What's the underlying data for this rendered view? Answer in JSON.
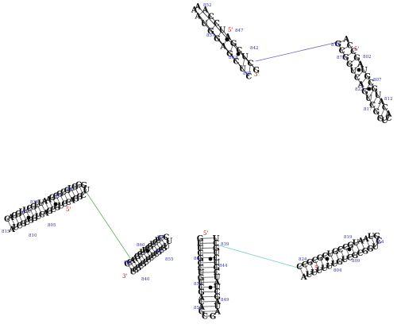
{
  "colors": {
    "nucleotide": "#111111",
    "number": "#3333aa",
    "strand_end": "#cc0000",
    "link_a": "#6666cc",
    "link_b": "#66aa66",
    "link_c": "#77cccc"
  },
  "structures": [
    {
      "id": "helix-1",
      "sequence": "AUGGAGCUCAAGCUCGAUCCA",
      "five_prime": "5'",
      "three_prime": "3'",
      "numbers": [
        "852",
        "847",
        "857",
        "842",
        "862",
        "867"
      ]
    },
    {
      "id": "helix-2",
      "sequence": "GCGGUCAGUCGCUCACAUGCGUAGCCA",
      "five_prime": "5'",
      "three_prime": "",
      "numbers": [
        "877",
        "802",
        "872",
        "807",
        "822",
        "812",
        "817"
      ]
    },
    {
      "id": "helix-3",
      "sequence": "AUCGCGGUCAGCGUCCAGGCUGCGUGCGCGAAUUGCUUGGAC",
      "five_prime": "5'",
      "three_prime": "",
      "numbers": [
        "825",
        "830",
        "820",
        "835",
        "815",
        "810",
        "805"
      ]
    },
    {
      "id": "helix-4",
      "sequence": "UGGCGCUCUCGCGUUCCUCUGCUUCGAACC",
      "five_prime": "",
      "three_prime": "3'",
      "numbers": [
        "860",
        "850",
        "865",
        "845",
        "855",
        "840"
      ]
    },
    {
      "id": "helix-5",
      "sequence": "GUUCGCCUGUCGACAGCGAUAGCUAUCGUCUGCU",
      "five_prime": "5'",
      "three_prime": "",
      "numbers": [
        "839",
        "864",
        "844",
        "859",
        "849",
        "854"
      ]
    },
    {
      "id": "helix-6",
      "sequence": "AUUUUUUGUCGCGGUCGUAAUGCCGUCGCGCC",
      "five_prime": "5'",
      "three_prime": "",
      "numbers": [
        "819",
        "814",
        "824",
        "809",
        "804"
      ]
    }
  ]
}
